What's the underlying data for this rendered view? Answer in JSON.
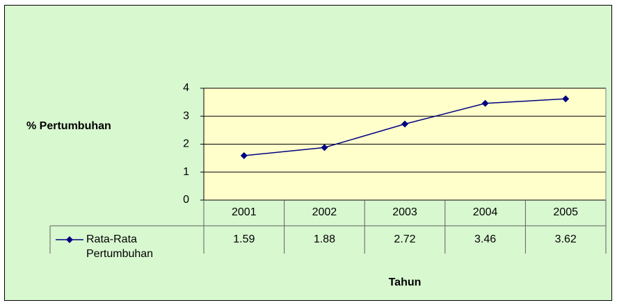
{
  "chart_data": {
    "type": "line",
    "ylabel": "% Pertumbuhan",
    "xlabel": "Tahun",
    "categories": [
      "2001",
      "2002",
      "2003",
      "2004",
      "2005"
    ],
    "series": [
      {
        "name": "Rata-Rata Pertumbuhan",
        "color": "#000080",
        "values": [
          1.59,
          1.88,
          2.72,
          3.46,
          3.62
        ]
      }
    ],
    "ylim": [
      0,
      4
    ],
    "yticks": [
      0,
      1,
      2,
      3,
      4
    ],
    "grid": true,
    "data_table": true
  }
}
